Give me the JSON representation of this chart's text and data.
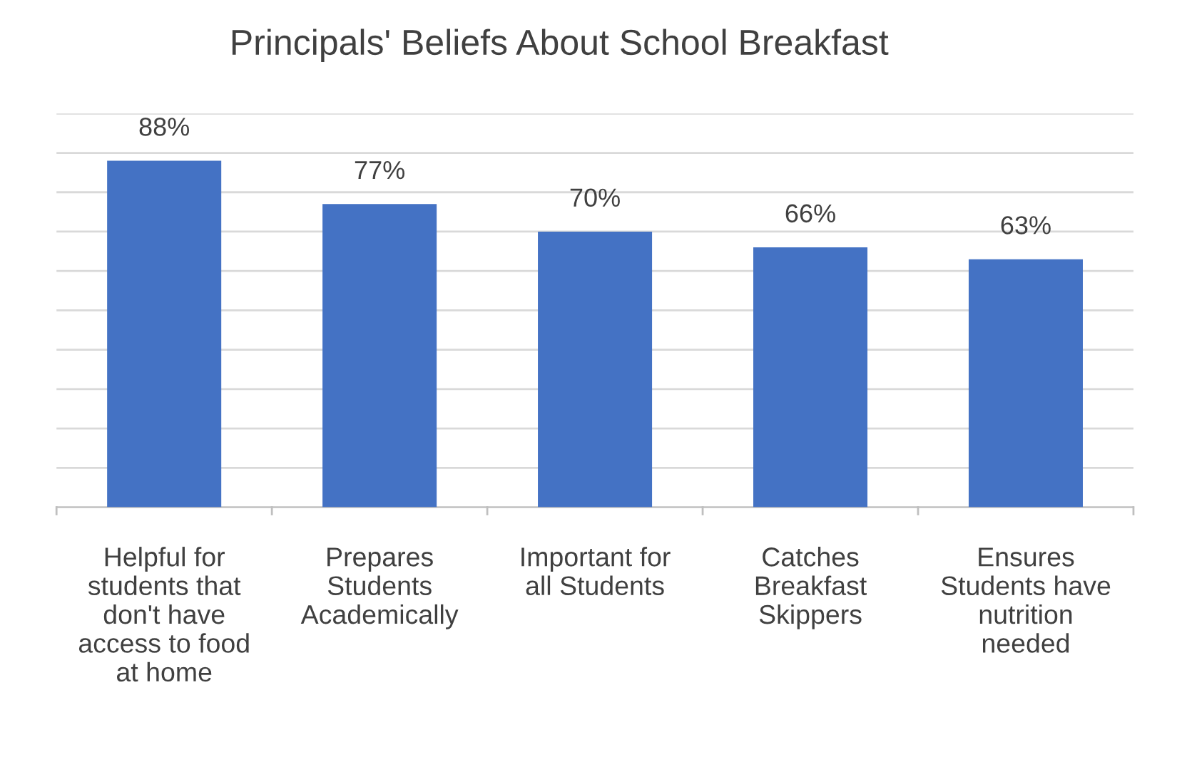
{
  "chart_data": {
    "type": "bar",
    "title": "Principals' Beliefs About School Breakfast",
    "categories": [
      "Helpful for\nstudents that\ndon't have\naccess to food\nat home",
      "Prepares\nStudents\nAcademically",
      "Important for\nall Students",
      "Catches\nBreakfast\nSkippers",
      "Ensures\nStudents have\nnutrition\nneeded"
    ],
    "values": [
      88,
      77,
      70,
      66,
      63
    ],
    "value_labels": [
      "88%",
      "77%",
      "70%",
      "66%",
      "63%"
    ],
    "color": "#4472c4",
    "ylim": [
      0,
      100
    ],
    "yticks": [
      {
        "value": 0,
        "label": null
      },
      {
        "value": 10,
        "label": null
      },
      {
        "value": 20,
        "label": null
      },
      {
        "value": 30,
        "label": null
      },
      {
        "value": 40,
        "label": null
      },
      {
        "value": 50,
        "label": null
      },
      {
        "value": 60,
        "label": null
      },
      {
        "value": 70,
        "label": null
      },
      {
        "value": 80,
        "label": null
      },
      {
        "value": 90,
        "label": null
      },
      {
        "value": 100,
        "label": null
      }
    ],
    "tick_labels": "x",
    "grid": "y"
  }
}
